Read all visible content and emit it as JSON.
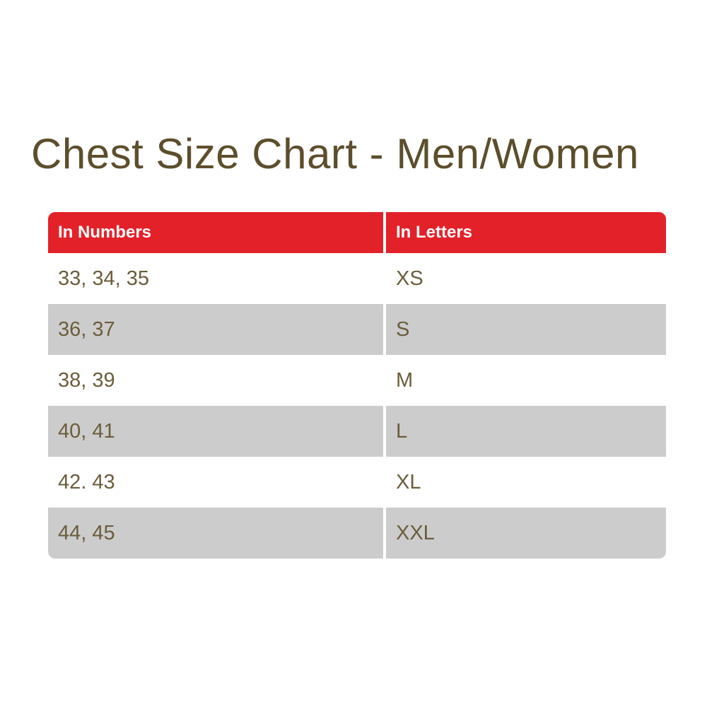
{
  "page": {
    "title": "Chest Size Chart - Men/Women"
  },
  "table": {
    "columns": [
      {
        "label": "In Numbers"
      },
      {
        "label": "In Letters"
      }
    ],
    "rows": [
      {
        "numbers": "33, 34, 35",
        "letters": "XS"
      },
      {
        "numbers": "36, 37",
        "letters": "S"
      },
      {
        "numbers": "38, 39",
        "letters": "M"
      },
      {
        "numbers": "40, 41",
        "letters": "L"
      },
      {
        "numbers": "42. 43",
        "letters": "XL"
      },
      {
        "numbers": "44, 45",
        "letters": "XXL"
      }
    ]
  },
  "colors": {
    "header_bg": "#e32129",
    "header_text": "#ffffff",
    "stripe_bg": "#cccccc",
    "title_text": "#5d4e2c",
    "cell_text": "#6b5d3c"
  }
}
